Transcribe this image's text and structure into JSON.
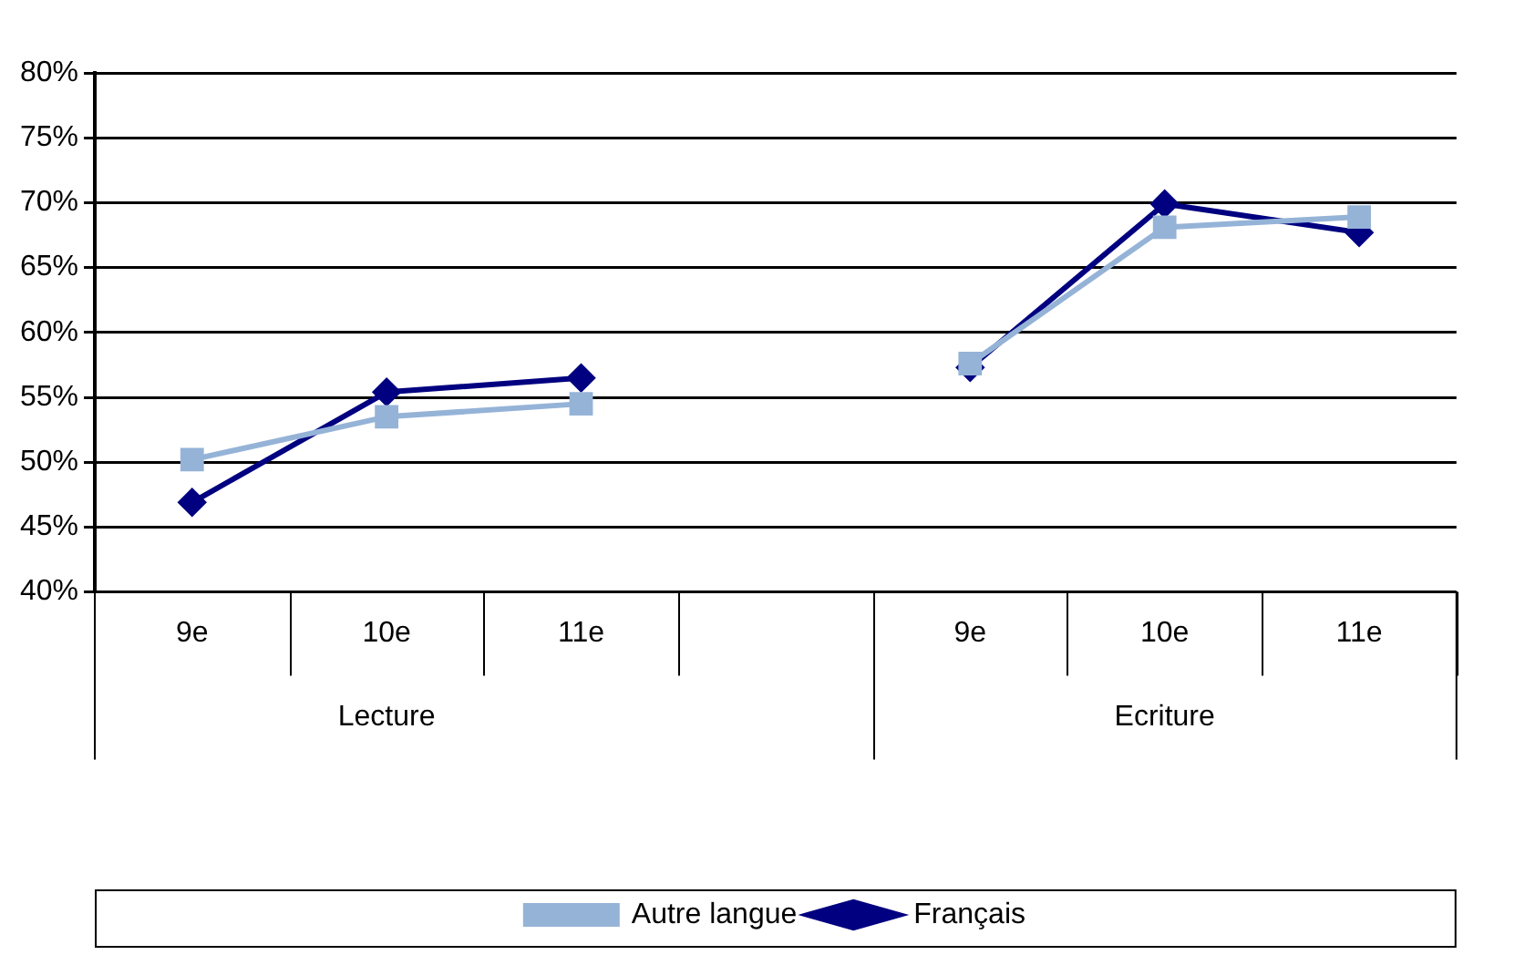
{
  "chart_data": {
    "type": "line",
    "categories": [
      "9e",
      "10e",
      "11e",
      null,
      "9e",
      "10e",
      "11e"
    ],
    "annotations": [
      "Lecture",
      "Ecriture"
    ],
    "series": [
      {
        "name": "Français",
        "color": "#000080",
        "marker": "diamond",
        "values": [
          46.9,
          55.4,
          56.5,
          null,
          57.3,
          69.9,
          67.7
        ]
      },
      {
        "name": "Autre langue",
        "color": "#95b3d7",
        "marker": "square",
        "values": [
          50.2,
          53.5,
          54.5,
          null,
          57.6,
          68.1,
          68.9
        ]
      }
    ],
    "ylim": [
      40,
      80
    ],
    "yticks": [
      {
        "value": 40,
        "label": "40%"
      },
      {
        "value": 45,
        "label": "45%"
      },
      {
        "value": 50,
        "label": "50%"
      },
      {
        "value": 55,
        "label": "55%"
      },
      {
        "value": 60,
        "label": "60%"
      },
      {
        "value": 65,
        "label": "65%"
      },
      {
        "value": 70,
        "label": "70%"
      },
      {
        "value": 75,
        "label": "75%"
      },
      {
        "value": 80,
        "label": "80%"
      }
    ],
    "grid": "y",
    "legend": "bottom"
  }
}
